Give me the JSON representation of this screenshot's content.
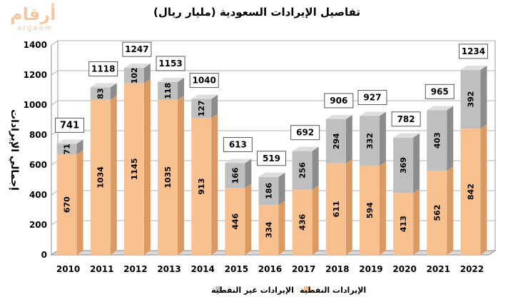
{
  "logo": {
    "arabic": "أرقام",
    "latin": "argaam"
  },
  "chart_data": {
    "type": "bar",
    "stacked": true,
    "title": "تفاصيل الإيرادات السعودية (مليار ريال)",
    "xlabel": "",
    "ylabel": "إجمالي الإيرادات",
    "ylim": [
      0,
      1400
    ],
    "yticks": [
      0,
      200,
      400,
      600,
      800,
      1000,
      1200,
      1400
    ],
    "grid": true,
    "legend_position": "bottom",
    "categories": [
      "2010",
      "2011",
      "2012",
      "2013",
      "2014",
      "2015",
      "2016",
      "2017",
      "2018",
      "2019",
      "2020",
      "2021",
      "2022"
    ],
    "series": [
      {
        "name": "الإيرادات النفطية",
        "color": "#f9c08f",
        "values": [
          670,
          1034,
          1145,
          1035,
          913,
          446,
          334,
          436,
          611,
          594,
          413,
          562,
          842
        ]
      },
      {
        "name": "الإيرادات غير النفطية",
        "color": "#bfbfbf",
        "values": [
          71,
          83,
          102,
          118,
          127,
          166,
          186,
          256,
          294,
          332,
          369,
          403,
          392
        ]
      }
    ],
    "totals": [
      741,
      1118,
      1247,
      1153,
      1040,
      613,
      519,
      692,
      906,
      927,
      782,
      965,
      1234
    ]
  },
  "colors": {
    "grid": "#b0b0b0",
    "wall": "#ffffff",
    "floor": "#d9d9d9",
    "oil_dark": "#d99a64",
    "oil_top": "#fbd7b5",
    "nonoil_dark": "#8c8c8c",
    "nonoil_top": "#dedede"
  }
}
